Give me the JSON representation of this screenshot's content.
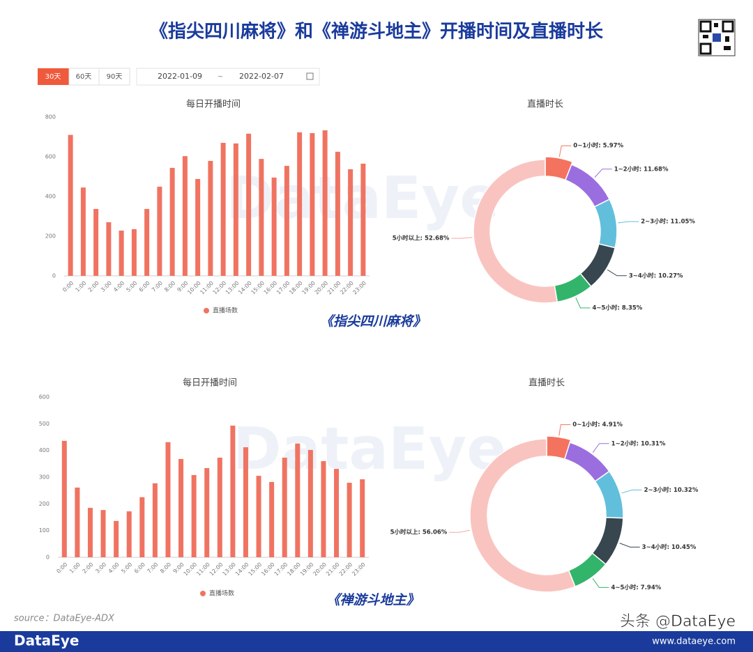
{
  "title": "《指尖四川麻将》和《禅游斗地主》开播时间及直播时长",
  "controls": {
    "ranges": [
      "30天",
      "60天",
      "90天"
    ],
    "start": "2022-01-09",
    "separator": "~",
    "end": "2022-02-07"
  },
  "watermark": "DataEye",
  "captions": [
    "《指尖四川麻将》",
    "《禅游斗地主》"
  ],
  "source": "source：DataEye-ADX",
  "footer": {
    "brand": "DataEye",
    "site": "www.dataeye.com",
    "handle": "头条 @DataEye"
  },
  "chart_data": [
    {
      "type": "bar",
      "title": "每日开播时间",
      "categories": [
        "0:00",
        "1:00",
        "2:00",
        "3:00",
        "4:00",
        "5:00",
        "6:00",
        "7:00",
        "8:00",
        "9:00",
        "10:00",
        "11:00",
        "12:00",
        "13:00",
        "14:00",
        "15:00",
        "16:00",
        "17:00",
        "18:00",
        "19:00",
        "20:00",
        "21:00",
        "22:00",
        "23:00"
      ],
      "series": [
        {
          "name": "直播场数",
          "color": "#f07361",
          "values": [
            710,
            445,
            337,
            270,
            228,
            235,
            337,
            449,
            544,
            603,
            488,
            579,
            670,
            667,
            716,
            589,
            495,
            554,
            723,
            719,
            733,
            625,
            537,
            565
          ]
        }
      ],
      "ylim": [
        0,
        800
      ],
      "yticks": [
        0,
        200,
        400,
        600,
        800
      ],
      "legend": "bottom"
    },
    {
      "type": "pie",
      "title": "直播时长",
      "donut": true,
      "values": [
        5.97,
        11.68,
        11.05,
        10.27,
        8.35,
        52.68
      ],
      "value_labels": [
        "0~1小时: 5.97%",
        "1~2小时: 11.68%",
        "2~3小时: 11.05%",
        "3~4小时: 10.27%",
        "4~5小时: 8.35%",
        "5小时以上: 52.68%"
      ],
      "colors": [
        "#f4735f",
        "#9b6ee0",
        "#62bfdc",
        "#37464f",
        "#33b46b",
        "#f9c4c0"
      ]
    },
    {
      "type": "bar",
      "title": "每日开播时间",
      "categories": [
        "0:00",
        "1:00",
        "2:00",
        "3:00",
        "4:00",
        "5:00",
        "6:00",
        "7:00",
        "8:00",
        "9:00",
        "10:00",
        "11:00",
        "12:00",
        "13:00",
        "14:00",
        "15:00",
        "16:00",
        "17:00",
        "18:00",
        "19:00",
        "20:00",
        "21:00",
        "22:00",
        "23:00"
      ],
      "series": [
        {
          "name": "直播场数",
          "color": "#f07361",
          "values": [
            436,
            261,
            185,
            177,
            136,
            172,
            225,
            277,
            431,
            368,
            308,
            334,
            373,
            493,
            412,
            305,
            282,
            373,
            426,
            402,
            360,
            331,
            279,
            292
          ]
        }
      ],
      "ylim": [
        0,
        600
      ],
      "yticks": [
        0,
        100,
        200,
        300,
        400,
        500,
        600
      ],
      "legend": "bottom"
    },
    {
      "type": "pie",
      "title": "直播时长",
      "donut": true,
      "values": [
        4.91,
        10.31,
        10.32,
        10.45,
        7.94,
        56.06
      ],
      "value_labels": [
        "0~1小时: 4.91%",
        "1~2小时: 10.31%",
        "2~3小时: 10.32%",
        "3~4小时: 10.45%",
        "4~5小时: 7.94%",
        "5小时以上: 56.06%"
      ],
      "colors": [
        "#f4735f",
        "#9b6ee0",
        "#62bfdc",
        "#37464f",
        "#33b46b",
        "#f9c4c0"
      ]
    }
  ]
}
